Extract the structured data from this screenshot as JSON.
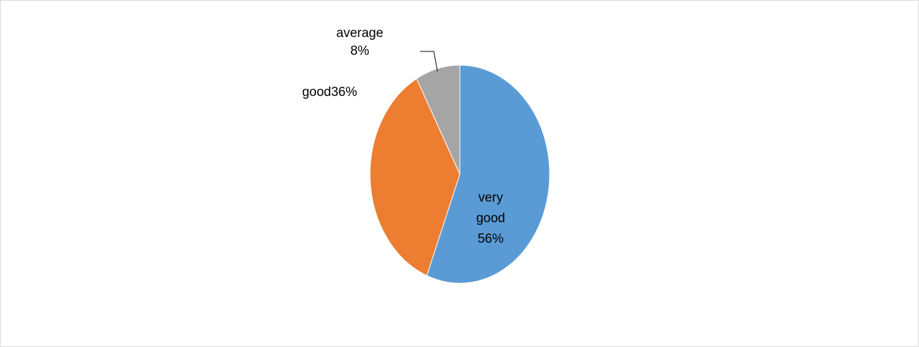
{
  "chart_data": {
    "type": "pie",
    "title": "",
    "slices": [
      {
        "name": "very good",
        "value": 56,
        "label_lines": [
          "very",
          "good",
          "56%"
        ],
        "color": "#5B9BD5"
      },
      {
        "name": "good",
        "value": 36,
        "label_lines": [
          "good36%"
        ],
        "color": "#ED7D31"
      },
      {
        "name": "average",
        "value": 8,
        "label_lines": [
          "average",
          "8%"
        ],
        "color": "#A5A5A5"
      }
    ],
    "legend": "none",
    "data_labels": "category name and percentage"
  }
}
